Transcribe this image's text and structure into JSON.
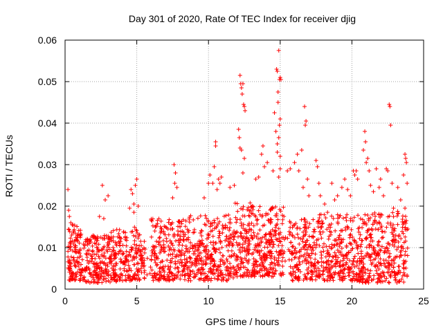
{
  "chart_data": {
    "type": "scatter",
    "title": "Day 301 of 2020, Rate Of TEC Index for receiver djig",
    "xlabel": "GPS time / hours",
    "ylabel": "ROTI / TECUs",
    "xlim": [
      0,
      25
    ],
    "ylim": [
      0,
      0.06
    ],
    "xticks": [
      0,
      5,
      10,
      15,
      20,
      25
    ],
    "xtick_labels": [
      "0",
      "5",
      "10",
      "15",
      "20",
      "25"
    ],
    "yticks": [
      0,
      0.01,
      0.02,
      0.03,
      0.04,
      0.05,
      0.06
    ],
    "ytick_labels": [
      "0",
      "0.01",
      "0.02",
      "0.03",
      "0.04",
      "0.05",
      "0.06"
    ],
    "grid": true,
    "marker": "+",
    "color": "#ff0000",
    "series": [
      {
        "name": "ROTI",
        "points": [
          [
            0.2,
            0.024
          ],
          [
            0.25,
            0.019
          ],
          [
            0.3,
            0.0175
          ],
          [
            0.4,
            0.016
          ],
          [
            0.5,
            0.0155
          ],
          [
            0.6,
            0.014
          ],
          [
            0.7,
            0.0135
          ],
          [
            0.8,
            0.012
          ],
          [
            0.9,
            0.013
          ],
          [
            2.6,
            0.025
          ],
          [
            2.8,
            0.0215
          ],
          [
            3.0,
            0.0225
          ],
          [
            2.4,
            0.0175
          ],
          [
            2.7,
            0.017
          ],
          [
            4.6,
            0.024
          ],
          [
            4.7,
            0.023
          ],
          [
            4.8,
            0.0205
          ],
          [
            4.9,
            0.025
          ],
          [
            5.0,
            0.0265
          ],
          [
            4.5,
            0.0195
          ],
          [
            4.8,
            0.0185
          ],
          [
            5.1,
            0.02
          ],
          [
            7.6,
            0.03
          ],
          [
            7.7,
            0.028
          ],
          [
            7.8,
            0.0245
          ],
          [
            7.65,
            0.0255
          ],
          [
            7.5,
            0.022
          ],
          [
            9.7,
            0.022
          ],
          [
            10.0,
            0.0255
          ],
          [
            10.1,
            0.0275
          ],
          [
            10.3,
            0.0255
          ],
          [
            10.4,
            0.0295
          ],
          [
            10.5,
            0.0355
          ],
          [
            10.5,
            0.0345
          ],
          [
            10.6,
            0.024
          ],
          [
            10.7,
            0.0265
          ],
          [
            10.8,
            0.0255
          ],
          [
            10.9,
            0.027
          ],
          [
            11.5,
            0.0245
          ],
          [
            11.8,
            0.025
          ],
          [
            12.1,
            0.0385
          ],
          [
            12.15,
            0.0365
          ],
          [
            12.2,
            0.0515
          ],
          [
            12.25,
            0.0495
          ],
          [
            12.3,
            0.0485
          ],
          [
            12.35,
            0.047
          ],
          [
            12.4,
            0.0495
          ],
          [
            12.45,
            0.0445
          ],
          [
            12.5,
            0.044
          ],
          [
            12.55,
            0.043
          ],
          [
            12.3,
            0.0335
          ],
          [
            12.5,
            0.0315
          ],
          [
            12.2,
            0.034
          ],
          [
            12.4,
            0.028
          ],
          [
            13.3,
            0.0265
          ],
          [
            13.5,
            0.027
          ],
          [
            13.7,
            0.0325
          ],
          [
            13.8,
            0.0345
          ],
          [
            13.9,
            0.0295
          ],
          [
            14.1,
            0.0305
          ],
          [
            14.5,
            0.0285
          ],
          [
            14.6,
            0.0425
          ],
          [
            14.7,
            0.038
          ],
          [
            14.75,
            0.053
          ],
          [
            14.8,
            0.0525
          ],
          [
            14.85,
            0.0475
          ],
          [
            14.9,
            0.0575
          ],
          [
            14.95,
            0.0505
          ],
          [
            15.0,
            0.051
          ],
          [
            15.05,
            0.0505
          ],
          [
            14.85,
            0.045
          ],
          [
            14.9,
            0.0365
          ],
          [
            14.95,
            0.0395
          ],
          [
            15.0,
            0.041
          ],
          [
            14.8,
            0.033
          ],
          [
            14.9,
            0.027
          ],
          [
            15.0,
            0.032
          ],
          [
            14.8,
            0.035
          ],
          [
            15.0,
            0.029
          ],
          [
            15.5,
            0.0285
          ],
          [
            15.7,
            0.029
          ],
          [
            16.0,
            0.0305
          ],
          [
            16.2,
            0.0325
          ],
          [
            16.3,
            0.0285
          ],
          [
            16.5,
            0.0335
          ],
          [
            16.7,
            0.044
          ],
          [
            16.75,
            0.0395
          ],
          [
            16.8,
            0.0405
          ],
          [
            16.6,
            0.0245
          ],
          [
            16.9,
            0.0265
          ],
          [
            17.0,
            0.0225
          ],
          [
            17.5,
            0.031
          ],
          [
            17.6,
            0.0295
          ],
          [
            17.7,
            0.0255
          ],
          [
            17.8,
            0.0225
          ],
          [
            18.1,
            0.0205
          ],
          [
            18.3,
            0.0185
          ],
          [
            18.6,
            0.0255
          ],
          [
            18.8,
            0.0215
          ],
          [
            19.0,
            0.0225
          ],
          [
            19.3,
            0.0245
          ],
          [
            19.5,
            0.0265
          ],
          [
            19.7,
            0.024
          ],
          [
            19.9,
            0.0225
          ],
          [
            20.1,
            0.0285
          ],
          [
            20.2,
            0.0275
          ],
          [
            20.3,
            0.0285
          ],
          [
            20.4,
            0.0265
          ],
          [
            20.8,
            0.0335
          ],
          [
            20.9,
            0.038
          ],
          [
            20.95,
            0.0355
          ],
          [
            21.0,
            0.0305
          ],
          [
            21.1,
            0.0315
          ],
          [
            21.2,
            0.0285
          ],
          [
            21.3,
            0.025
          ],
          [
            21.5,
            0.0235
          ],
          [
            21.7,
            0.029
          ],
          [
            21.9,
            0.0245
          ],
          [
            22.0,
            0.0265
          ],
          [
            22.2,
            0.0225
          ],
          [
            22.4,
            0.029
          ],
          [
            22.5,
            0.0285
          ],
          [
            22.6,
            0.0445
          ],
          [
            22.65,
            0.044
          ],
          [
            22.7,
            0.0395
          ],
          [
            22.8,
            0.0255
          ],
          [
            22.9,
            0.0195
          ],
          [
            23.2,
            0.0245
          ],
          [
            23.4,
            0.0215
          ],
          [
            23.6,
            0.0275
          ],
          [
            23.7,
            0.0325
          ],
          [
            23.75,
            0.0315
          ],
          [
            23.8,
            0.0305
          ],
          [
            23.85,
            0.0255
          ],
          [
            23.7,
            0.0195
          ],
          [
            23.8,
            0.0165
          ],
          [
            23.9,
            0.0145
          ]
        ],
        "bands": [
          {
            "x": [
              0.2,
              1.4
            ],
            "y": [
              0.002,
              0.016
            ],
            "n": 120
          },
          {
            "x": [
              1.4,
              3.6
            ],
            "y": [
              0.0015,
              0.013
            ],
            "n": 190
          },
          {
            "x": [
              3.2,
              5.6
            ],
            "y": [
              0.002,
              0.015
            ],
            "n": 180
          },
          {
            "x": [
              6.0,
              8.6
            ],
            "y": [
              0.002,
              0.017
            ],
            "n": 240
          },
          {
            "x": [
              8.6,
              11.8
            ],
            "y": [
              0.002,
              0.018
            ],
            "n": 260
          },
          {
            "x": [
              11.8,
              13.2
            ],
            "y": [
              0.003,
              0.021
            ],
            "n": 140
          },
          {
            "x": [
              13.2,
              15.3
            ],
            "y": [
              0.003,
              0.02
            ],
            "n": 200
          },
          {
            "x": [
              15.6,
              17.4
            ],
            "y": [
              0.002,
              0.017
            ],
            "n": 140
          },
          {
            "x": [
              17.4,
              20.5
            ],
            "y": [
              0.002,
              0.018
            ],
            "n": 260
          },
          {
            "x": [
              20.5,
              23.9
            ],
            "y": [
              0.0015,
              0.019
            ],
            "n": 300
          },
          {
            "x": [
              0.2,
              23.9
            ],
            "y": [
              0.003,
              0.013
            ],
            "n": 350
          }
        ]
      }
    ]
  }
}
